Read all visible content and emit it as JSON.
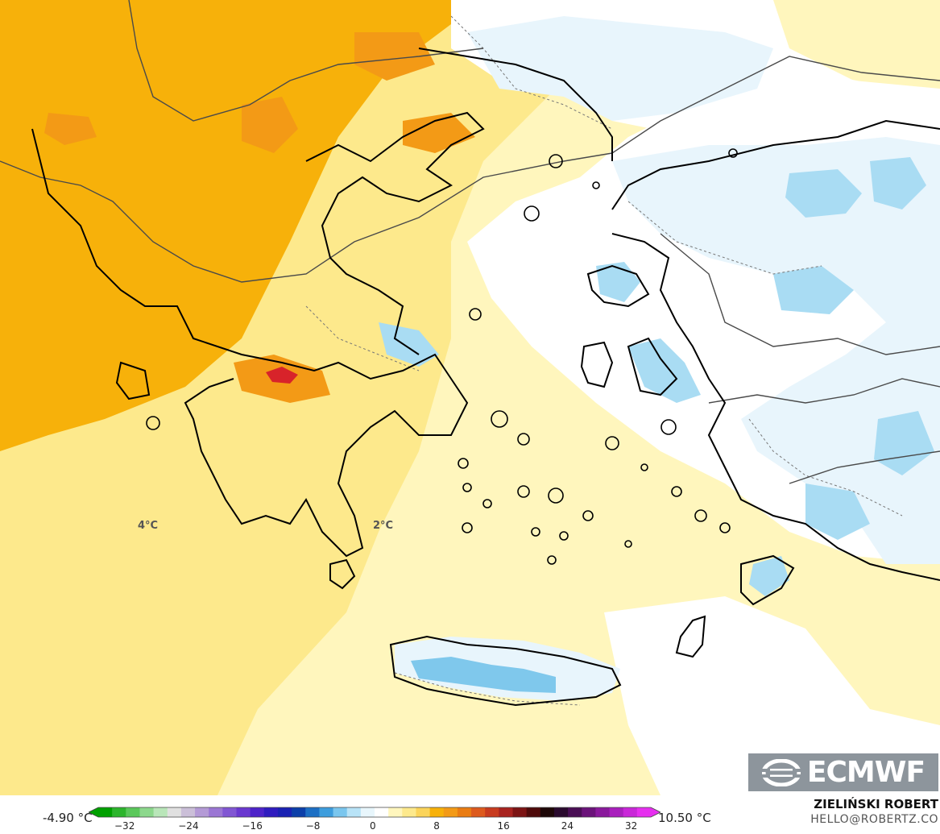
{
  "map": {
    "labels": [
      {
        "text": "4°C"
      },
      {
        "text": "2°C"
      }
    ],
    "colors": {
      "sea_orange": "#f7b10a",
      "light_yellow": "#fde98c",
      "pale_yellow": "#fff6bd",
      "zero_white": "#ffffff",
      "pale_blue": "#e8f5fc",
      "cold_blue": "#a9dcf3",
      "warm_orange": "#f39a16",
      "hot_red": "#d8232a",
      "coastline": "#000000",
      "border": "#4a4a4a"
    }
  },
  "logo": {
    "text": "ECMWF",
    "icon": "ecmwf-logo-icon"
  },
  "legend": {
    "min_label": "-4.90 °C",
    "max_label": "10.50 °C",
    "ticks": [
      "−32",
      "−24",
      "−16",
      "−8",
      "0",
      "8",
      "16",
      "24",
      "32"
    ],
    "colors": [
      "#00a000",
      "#2cb52c",
      "#5ac85a",
      "#8cd88c",
      "#b9e6b9",
      "#e0e0e0",
      "#cbbfd8",
      "#b49ad6",
      "#9b76d4",
      "#8156d3",
      "#6a38d0",
      "#4d23c9",
      "#2f1cbf",
      "#1a22b3",
      "#0c3fa9",
      "#1c6fc4",
      "#3d9ddd",
      "#7ac6ee",
      "#b8e3f7",
      "#e8f6fc",
      "#ffffff",
      "#fff6bd",
      "#fde98c",
      "#fbd45a",
      "#f7b10a",
      "#f39a16",
      "#ea7c12",
      "#dd5a1d",
      "#c83b1f",
      "#a8231f",
      "#7c1414",
      "#4f0b0b",
      "#1e0808",
      "#2a0a2e",
      "#4a0e55",
      "#6b137a",
      "#8a199c",
      "#a91fbd",
      "#c927d8",
      "#e62fef"
    ]
  },
  "author": {
    "name": "ZIELIŃSKI ROBERT",
    "email": "HELLO@ROBERTZ.CO"
  }
}
